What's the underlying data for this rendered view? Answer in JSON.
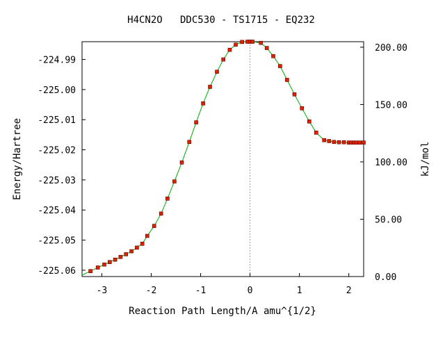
{
  "chart_data": {
    "type": "line",
    "title": "H4CN2O   DDC530 - TS1715 - EQ232",
    "xlabel": "Reaction Path Length/A amu^{1/2}",
    "ylabel": "Energy/Hartree",
    "y2label": "kJ/mol",
    "xlim": [
      -3.4,
      2.3
    ],
    "ylim": [
      -225.0621,
      -224.9841
    ],
    "y2lim": [
      0,
      204.8
    ],
    "x_ticks": [
      -3,
      -2,
      -1,
      0,
      1,
      2
    ],
    "x_tick_labels": [
      "-3",
      "-2",
      "-1",
      "0",
      "1",
      "2"
    ],
    "y_ticks": [
      -224.99,
      -225.0,
      -225.01,
      -225.02,
      -225.03,
      -225.04,
      -225.05,
      -225.06
    ],
    "y_tick_labels": [
      "-224.99",
      "-225.00",
      "-225.01",
      "-225.02",
      "-225.03",
      "-225.04",
      "-225.05",
      "-225.06"
    ],
    "y2_ticks": [
      0,
      50,
      100,
      150,
      200
    ],
    "y2_tick_labels": [
      "0.00",
      "50.00",
      "100.00",
      "150.00",
      "200.00"
    ],
    "ts_x": 0,
    "colors": {
      "line": "#00aa00",
      "marker": "#dd2200",
      "ts_line": "#999999"
    },
    "series": [
      {
        "x": [
          -3.23,
          -3.08,
          -2.95,
          -2.84,
          -2.73,
          -2.62,
          -2.51,
          -2.4,
          -2.29,
          -2.18,
          -2.08,
          -1.94,
          -1.8,
          -1.67,
          -1.53,
          -1.38,
          -1.23,
          -1.09,
          -0.95,
          -0.81,
          -0.67,
          -0.54,
          -0.41,
          -0.29,
          -0.16,
          -0.05,
          0.0,
          0.05,
          0.22,
          0.34,
          0.47,
          0.61,
          0.75,
          0.9,
          1.05,
          1.2,
          1.34,
          1.5,
          1.6,
          1.7,
          1.8,
          1.9,
          2.0,
          2.05,
          2.1,
          2.15,
          2.22,
          2.3
        ],
        "y": [
          -225.0603,
          -225.0591,
          -225.0581,
          -225.0573,
          -225.0565,
          -225.0556,
          -225.0547,
          -225.0537,
          -225.0525,
          -225.0512,
          -225.0486,
          -225.0453,
          -225.0412,
          -225.0362,
          -225.0305,
          -225.0242,
          -225.0174,
          -225.0109,
          -225.0046,
          -224.9991,
          -224.9941,
          -224.99,
          -224.9868,
          -224.9851,
          -224.9842,
          -224.9841,
          -224.9841,
          -224.9841,
          -224.9845,
          -224.9862,
          -224.9889,
          -224.9922,
          -224.9968,
          -225.0016,
          -225.0062,
          -225.0106,
          -225.0143,
          -225.0168,
          -225.0171,
          -225.0174,
          -225.0175,
          -225.0175,
          -225.0176,
          -225.0176,
          -225.0176,
          -225.0176,
          -225.0176,
          -225.0176
        ]
      }
    ]
  }
}
